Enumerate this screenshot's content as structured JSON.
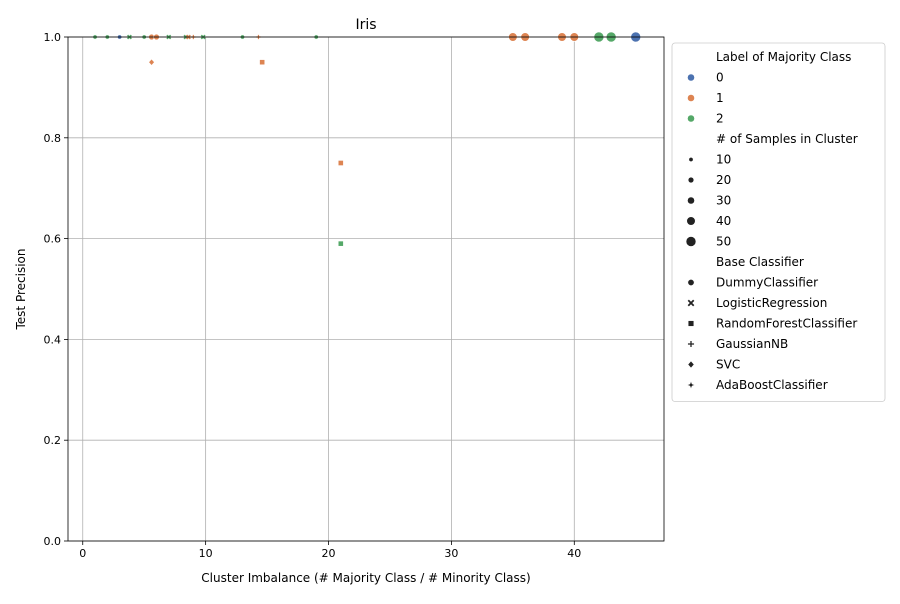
{
  "chart_data": {
    "type": "scatter",
    "title": "Iris",
    "xlabel": "Cluster Imbalance (# Majority Class / # Minority Class)",
    "ylabel": "Test Precision",
    "xlim": [
      -1.2,
      47.3
    ],
    "ylim": [
      0.0,
      1.0
    ],
    "xticks": [
      0,
      10,
      20,
      30,
      40
    ],
    "yticks": [
      0.0,
      0.2,
      0.4,
      0.6,
      0.8,
      1.0
    ],
    "xtick_labels": [
      "0",
      "10",
      "20",
      "30",
      "40"
    ],
    "ytick_labels": [
      "0.0",
      "0.2",
      "0.4",
      "0.6",
      "0.8",
      "1.0"
    ],
    "grid": true,
    "legend_position": "outside-right",
    "hue": {
      "title": "Label of Majority Class",
      "levels": [
        {
          "label": "0",
          "color": "#4c72b0"
        },
        {
          "label": "1",
          "color": "#dd8452"
        },
        {
          "label": "2",
          "color": "#55a868"
        }
      ]
    },
    "size": {
      "title": "# of Samples in Cluster",
      "levels": [
        "10",
        "20",
        "30",
        "40",
        "50"
      ]
    },
    "style": {
      "title": "Base Classifier",
      "levels": [
        {
          "label": "DummyClassifier",
          "marker": "circle"
        },
        {
          "label": "LogisticRegression",
          "marker": "x"
        },
        {
          "label": "RandomForestClassifier",
          "marker": "square"
        },
        {
          "label": "GaussianNB",
          "marker": "plus"
        },
        {
          "label": "SVC",
          "marker": "diamond"
        },
        {
          "label": "AdaBoostClassifier",
          "marker": "star"
        }
      ]
    },
    "points": [
      {
        "x": 1,
        "y": 1.0,
        "hue": "2",
        "size": 10,
        "marker": "circle"
      },
      {
        "x": 2,
        "y": 1.0,
        "hue": "2",
        "size": 10,
        "marker": "circle"
      },
      {
        "x": 3,
        "y": 1.0,
        "hue": "0",
        "size": 10,
        "marker": "circle"
      },
      {
        "x": 3.8,
        "y": 1.0,
        "hue": "2",
        "size": 10,
        "marker": "x"
      },
      {
        "x": 5,
        "y": 1.0,
        "hue": "2",
        "size": 10,
        "marker": "circle"
      },
      {
        "x": 5.6,
        "y": 1.0,
        "hue": "1",
        "size": 20,
        "marker": "circle"
      },
      {
        "x": 6,
        "y": 1.0,
        "hue": "1",
        "size": 20,
        "marker": "circle"
      },
      {
        "x": 7,
        "y": 1.0,
        "hue": "2",
        "size": 10,
        "marker": "x"
      },
      {
        "x": 8.4,
        "y": 1.0,
        "hue": "2",
        "size": 10,
        "marker": "x"
      },
      {
        "x": 8.6,
        "y": 1.0,
        "hue": "1",
        "size": 10,
        "marker": "x"
      },
      {
        "x": 9,
        "y": 1.0,
        "hue": "1",
        "size": 10,
        "marker": "plus"
      },
      {
        "x": 9.8,
        "y": 1.0,
        "hue": "2",
        "size": 10,
        "marker": "x"
      },
      {
        "x": 13,
        "y": 1.0,
        "hue": "2",
        "size": 10,
        "marker": "circle"
      },
      {
        "x": 14.3,
        "y": 1.0,
        "hue": "1",
        "size": 10,
        "marker": "plus"
      },
      {
        "x": 19,
        "y": 1.0,
        "hue": "2",
        "size": 10,
        "marker": "circle"
      },
      {
        "x": 5.6,
        "y": 0.95,
        "hue": "1",
        "size": 20,
        "marker": "diamond"
      },
      {
        "x": 14.6,
        "y": 0.95,
        "hue": "1",
        "size": 20,
        "marker": "square"
      },
      {
        "x": 21,
        "y": 0.75,
        "hue": "1",
        "size": 20,
        "marker": "square"
      },
      {
        "x": 21,
        "y": 0.59,
        "hue": "2",
        "size": 20,
        "marker": "square"
      },
      {
        "x": 35,
        "y": 1.0,
        "hue": "1",
        "size": 40,
        "marker": "circle"
      },
      {
        "x": 36,
        "y": 1.0,
        "hue": "1",
        "size": 40,
        "marker": "circle"
      },
      {
        "x": 39,
        "y": 1.0,
        "hue": "1",
        "size": 40,
        "marker": "circle"
      },
      {
        "x": 40,
        "y": 1.0,
        "hue": "1",
        "size": 40,
        "marker": "circle"
      },
      {
        "x": 42,
        "y": 1.0,
        "hue": "2",
        "size": 50,
        "marker": "circle"
      },
      {
        "x": 43,
        "y": 1.0,
        "hue": "2",
        "size": 50,
        "marker": "circle"
      },
      {
        "x": 45,
        "y": 1.0,
        "hue": "0",
        "size": 50,
        "marker": "circle"
      }
    ]
  }
}
